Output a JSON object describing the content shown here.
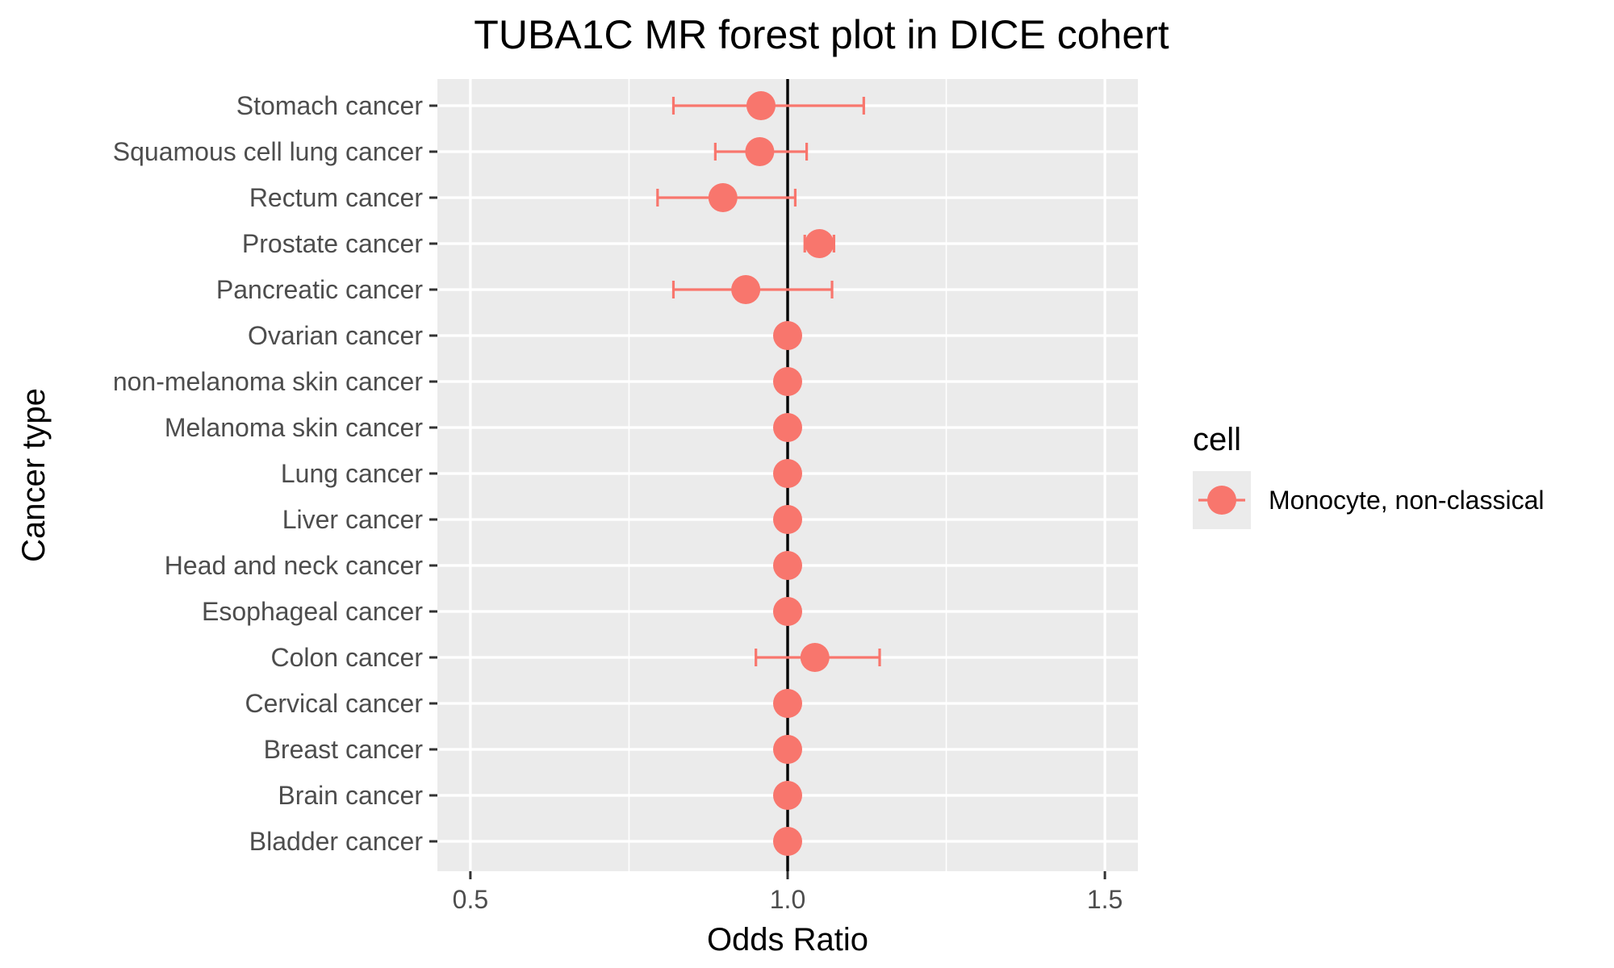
{
  "chart_data": {
    "type": "scatter",
    "title": "TUBA1C MR forest plot in DICE cohert",
    "xlabel": "Odds Ratio",
    "ylabel": "Cancer type",
    "xlim": [
      0.448,
      1.552
    ],
    "xticks": [
      0.5,
      1.0,
      1.5
    ],
    "xtick_labels": [
      "0.5",
      "1.0",
      "1.5"
    ],
    "reference_line": 1.0,
    "grid": true,
    "legend": {
      "title": "cell",
      "position": "right",
      "entries": [
        {
          "label": "Monocyte, non-classical",
          "color": "#F8766D"
        }
      ]
    },
    "categories": [
      "Bladder cancer",
      "Brain cancer",
      "Breast cancer",
      "Cervical cancer",
      "Colon cancer",
      "Esophageal cancer",
      "Head and neck cancer",
      "Liver cancer",
      "Lung cancer",
      "Melanoma skin cancer",
      "non-melanoma skin cancer",
      "Ovarian cancer",
      "Pancreatic cancer",
      "Prostate cancer",
      "Rectum cancer",
      "Squamous cell lung cancer",
      "Stomach cancer"
    ],
    "series": [
      {
        "name": "Monocyte, non-classical",
        "color": "#F8766D",
        "or": [
          1.0,
          1.0,
          1.0,
          1.0,
          1.043,
          1.0,
          1.0,
          1.0,
          1.0,
          1.0,
          1.0,
          1.0,
          0.934,
          1.05,
          0.898,
          0.956,
          0.958
        ],
        "lower": [
          1.0,
          1.0,
          1.0,
          1.0,
          0.95,
          1.0,
          1.0,
          1.0,
          1.0,
          1.0,
          1.0,
          1.0,
          0.82,
          1.027,
          0.795,
          0.886,
          0.82
        ],
        "upper": [
          1.0,
          1.0,
          1.0,
          1.0,
          1.145,
          1.0,
          1.0,
          1.0,
          1.0,
          1.0,
          1.0,
          1.0,
          1.07,
          1.073,
          1.012,
          1.03,
          1.12
        ]
      }
    ]
  }
}
